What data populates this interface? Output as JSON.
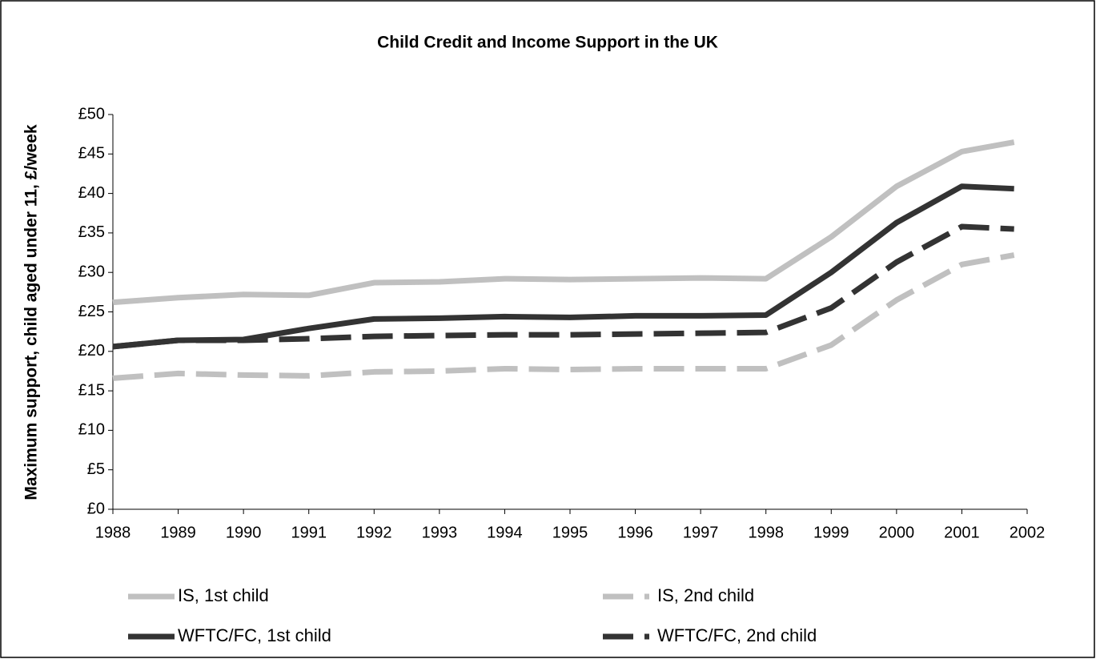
{
  "chart_data": {
    "type": "line",
    "title": "Child Credit and Income Support in the UK",
    "y_label": "Maximum support, child aged under 11, £/week",
    "x": [
      1988,
      1989,
      1990,
      1991,
      1992,
      1993,
      1994,
      1995,
      1996,
      1997,
      1998,
      1999,
      2000,
      2001,
      2001.8
    ],
    "series": [
      {
        "name": "IS, 1st child",
        "color": "#c0c0c0",
        "dashed": false,
        "values": [
          26.2,
          26.8,
          27.2,
          27.1,
          28.7,
          28.8,
          29.2,
          29.1,
          29.2,
          29.3,
          29.2,
          34.5,
          40.9,
          45.3,
          46.5
        ]
      },
      {
        "name": "IS, 2nd child",
        "color": "#c0c0c0",
        "dashed": true,
        "values": [
          16.6,
          17.2,
          17.0,
          16.9,
          17.4,
          17.5,
          17.8,
          17.7,
          17.8,
          17.8,
          17.8,
          20.8,
          26.5,
          31.0,
          32.2
        ]
      },
      {
        "name": "WFTC/FC, 1st child",
        "color": "#333333",
        "dashed": false,
        "values": [
          20.6,
          21.4,
          21.5,
          22.9,
          24.1,
          24.2,
          24.4,
          24.3,
          24.5,
          24.5,
          24.6,
          30.0,
          36.3,
          40.9,
          40.6
        ]
      },
      {
        "name": "WFTC/FC, 2nd child",
        "color": "#333333",
        "dashed": true,
        "values": [
          20.6,
          21.4,
          21.4,
          21.6,
          21.9,
          22.0,
          22.1,
          22.1,
          22.2,
          22.3,
          22.4,
          25.5,
          31.3,
          35.8,
          35.5
        ]
      }
    ],
    "xlim": [
      1988,
      2002
    ],
    "xticks": [
      1988,
      1989,
      1990,
      1991,
      1992,
      1993,
      1994,
      1995,
      1996,
      1997,
      1998,
      1999,
      2000,
      2001,
      2002
    ],
    "ylim": [
      0,
      50
    ],
    "yticks": [
      {
        "value": 0,
        "label": "£0"
      },
      {
        "value": 5,
        "label": "£5"
      },
      {
        "value": 10,
        "label": "£10"
      },
      {
        "value": 15,
        "label": "£15"
      },
      {
        "value": 20,
        "label": "£20"
      },
      {
        "value": 25,
        "label": "£25"
      },
      {
        "value": 30,
        "label": "£30"
      },
      {
        "value": 35,
        "label": "£35"
      },
      {
        "value": 40,
        "label": "£40"
      },
      {
        "value": 45,
        "label": "£45"
      },
      {
        "value": 50,
        "label": "£50"
      }
    ],
    "grid": false
  }
}
